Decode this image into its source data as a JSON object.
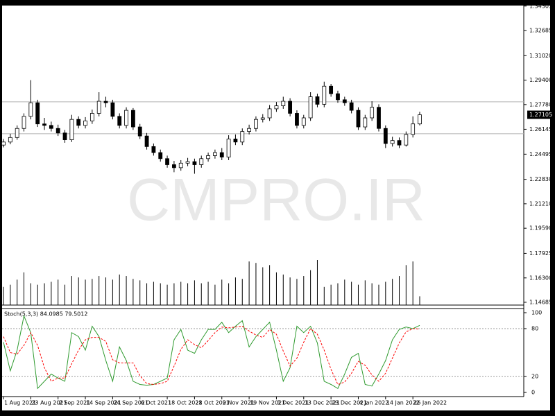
{
  "chart_data": [
    {
      "type": "candlestick",
      "watermark": "CMPRO.IR",
      "categories": [
        "1 Aug 2021",
        null,
        null,
        null,
        "23 Aug 2021",
        null,
        null,
        null,
        "2 Sep 2021",
        null,
        null,
        null,
        "14 Sep 2021",
        null,
        null,
        null,
        "24 Sep 2021",
        null,
        null,
        null,
        "6 Oct 2021",
        null,
        null,
        null,
        "18 Oct 2021",
        null,
        null,
        null,
        "28 Oct 2021",
        null,
        null,
        null,
        "9 Nov 2021",
        null,
        null,
        null,
        "19 Nov 2021",
        null,
        null,
        null,
        "1 Dec 2021",
        null,
        null,
        null,
        "13 Dec 2021",
        null,
        null,
        null,
        "23 Dec 2021",
        null,
        null,
        null,
        "4 Jan 2022",
        null,
        null,
        null,
        "14 Jan 2022",
        null,
        null,
        null,
        "26 Jan 2022",
        null
      ],
      "open": [
        1.251,
        1.253,
        1.256,
        1.262,
        1.27,
        1.279,
        1.265,
        1.264,
        1.262,
        1.259,
        1.2545,
        1.268,
        1.264,
        1.267,
        1.272,
        1.28,
        1.279,
        1.27,
        1.264,
        1.274,
        1.263,
        1.257,
        1.25,
        1.246,
        1.242,
        1.238,
        1.236,
        1.239,
        1.24,
        1.238,
        1.242,
        1.244,
        1.246,
        1.243,
        1.255,
        1.253,
        1.26,
        1.262,
        1.268,
        1.269,
        1.275,
        1.277,
        1.28,
        1.272,
        1.264,
        1.269,
        1.283,
        1.278,
        1.29,
        1.285,
        1.281,
        1.279,
        1.274,
        1.263,
        1.269,
        1.276,
        1.262,
        1.252,
        1.254,
        1.251,
        1.258,
        1.265
      ],
      "high": [
        1.255,
        1.2585,
        1.264,
        1.272,
        1.294,
        1.281,
        1.269,
        1.2665,
        1.2645,
        1.261,
        1.271,
        1.27,
        1.2695,
        1.2745,
        1.286,
        1.283,
        1.281,
        1.272,
        1.276,
        1.2755,
        1.265,
        1.259,
        1.252,
        1.248,
        1.244,
        1.2405,
        1.241,
        1.2425,
        1.242,
        1.244,
        1.246,
        1.248,
        1.249,
        1.2575,
        1.258,
        1.262,
        1.2645,
        1.27,
        1.2715,
        1.2775,
        1.2795,
        1.283,
        1.282,
        1.274,
        1.271,
        1.286,
        1.285,
        1.293,
        1.2915,
        1.287,
        1.283,
        1.281,
        1.276,
        1.271,
        1.28,
        1.278,
        1.264,
        1.2565,
        1.256,
        1.26,
        1.27,
        1.273
      ],
      "low": [
        1.2495,
        1.2515,
        1.2545,
        1.26,
        1.268,
        1.263,
        1.261,
        1.26,
        1.257,
        1.2525,
        1.253,
        1.262,
        1.262,
        1.265,
        1.27,
        1.276,
        1.268,
        1.262,
        1.262,
        1.261,
        1.255,
        1.248,
        1.244,
        1.24,
        1.236,
        1.233,
        1.234,
        1.237,
        1.232,
        1.236,
        1.24,
        1.242,
        1.241,
        1.241,
        1.251,
        1.251,
        1.258,
        1.26,
        1.266,
        1.267,
        1.273,
        1.275,
        1.27,
        1.262,
        1.262,
        1.267,
        1.276,
        1.276,
        1.283,
        1.279,
        1.277,
        1.272,
        1.261,
        1.261,
        1.267,
        1.26,
        1.249,
        1.25,
        1.249,
        1.25,
        1.256,
        1.264
      ],
      "close": [
        1.253,
        1.256,
        1.262,
        1.27,
        1.279,
        1.265,
        1.264,
        1.262,
        1.259,
        1.2545,
        1.268,
        1.264,
        1.267,
        1.272,
        1.28,
        1.279,
        1.27,
        1.264,
        1.274,
        1.263,
        1.257,
        1.25,
        1.246,
        1.242,
        1.238,
        1.236,
        1.239,
        1.24,
        1.238,
        1.242,
        1.244,
        1.246,
        1.243,
        1.255,
        1.253,
        1.26,
        1.262,
        1.268,
        1.269,
        1.275,
        1.277,
        1.28,
        1.272,
        1.264,
        1.269,
        1.283,
        1.278,
        1.29,
        1.285,
        1.281,
        1.279,
        1.274,
        1.263,
        1.269,
        1.276,
        1.262,
        1.252,
        1.254,
        1.251,
        1.258,
        1.265,
        1.27105
      ],
      "up_color": "#ffffff",
      "down_color": "#000000",
      "ylim": [
        1.145,
        1.3434
      ],
      "yticks": [
        1.34305,
        1.32685,
        {
          "value": 1.3102,
          "label": "1.31020"
        },
        {
          "value": 1.294,
          "label": "1.29400"
        },
        {
          "value": 1.2778,
          "label": "1.27780"
        },
        1.26145,
        1.24495,
        {
          "value": 1.2283,
          "label": "1.22830"
        },
        {
          "value": 1.2121,
          "label": "1.21210"
        },
        {
          "value": 1.1959,
          "label": "1.19590"
        },
        1.17925,
        {
          "value": 1.163,
          "label": "1.16300"
        },
        1.14685
      ],
      "current_price": 1.27105,
      "hlines": [
        1.2796,
        1.2585
      ]
    },
    {
      "type": "bar",
      "color": "#000000",
      "values": [
        25,
        28,
        35,
        45,
        30,
        28,
        30,
        32,
        35,
        28,
        40,
        38,
        35,
        36,
        40,
        38,
        35,
        42,
        40,
        36,
        34,
        30,
        32,
        30,
        28,
        30,
        32,
        30,
        34,
        30,
        32,
        28,
        35,
        30,
        38,
        36,
        60,
        58,
        52,
        55,
        45,
        42,
        38,
        36,
        40,
        48,
        62,
        25,
        28,
        30,
        35,
        32,
        28,
        34,
        30,
        28,
        32,
        36,
        40,
        55,
        60,
        12
      ]
    },
    {
      "type": "line",
      "title": "Stoch(5,3,3) 84.0985 79.5012",
      "ylim": [
        0,
        100
      ],
      "yticks": [
        0,
        20,
        80,
        100
      ],
      "levels": [
        20,
        80
      ],
      "series": [
        {
          "color": "#2e9a2e",
          "style": "solid",
          "values": [
            63,
            27,
            53,
            96,
            75,
            5,
            14,
            23,
            18,
            14,
            75,
            70,
            53,
            83,
            70,
            40,
            14,
            57,
            40,
            14,
            10,
            9,
            10,
            14,
            18,
            66,
            79,
            53,
            49,
            66,
            79,
            79,
            88,
            75,
            83,
            90,
            57,
            70,
            79,
            88,
            53,
            14,
            31,
            83,
            75,
            83,
            62,
            14,
            10,
            5,
            23,
            44,
            49,
            10,
            8,
            23,
            40,
            66,
            79,
            82,
            80,
            84.0985
          ]
        },
        {
          "color": "#ff0000",
          "style": "dashed",
          "values": [
            70,
            50,
            48,
            59,
            75,
            59,
            31,
            14,
            18,
            18,
            36,
            53,
            66,
            69,
            69,
            64,
            41,
            37,
            37,
            37,
            21,
            11,
            10,
            11,
            14,
            33,
            54,
            66,
            60,
            56,
            65,
            75,
            82,
            81,
            82,
            83,
            77,
            72,
            69,
            79,
            73,
            52,
            33,
            43,
            63,
            80,
            73,
            53,
            29,
            10,
            13,
            24,
            39,
            34,
            22,
            14,
            24,
            43,
            62,
            76,
            80,
            79.5012
          ]
        }
      ]
    }
  ]
}
